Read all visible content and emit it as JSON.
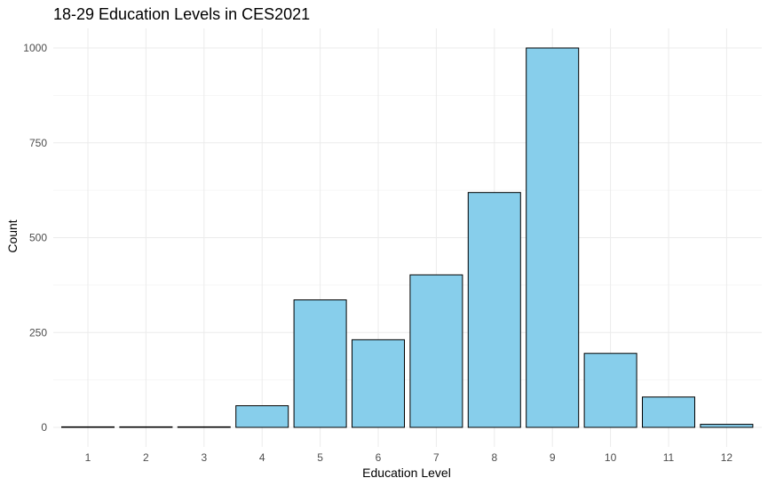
{
  "chart_data": {
    "type": "bar",
    "title": "18-29 Education Levels in CES2021",
    "xlabel": "Education Level",
    "ylabel": "Count",
    "categories": [
      "1",
      "2",
      "3",
      "4",
      "5",
      "6",
      "7",
      "8",
      "9",
      "10",
      "11",
      "12"
    ],
    "values": [
      1,
      1,
      1,
      57,
      336,
      231,
      402,
      619,
      1000,
      195,
      80,
      8
    ],
    "ylim": [
      0,
      1050
    ],
    "yticks": [
      0,
      250,
      500,
      750,
      1000
    ],
    "grid": true,
    "legend": "none",
    "colors": {
      "bar_fill": "#87CEEB",
      "bar_stroke": "#000000",
      "grid_major": "#ebebeb",
      "grid_minor": "#f3f3f3",
      "background": "#ffffff"
    }
  }
}
